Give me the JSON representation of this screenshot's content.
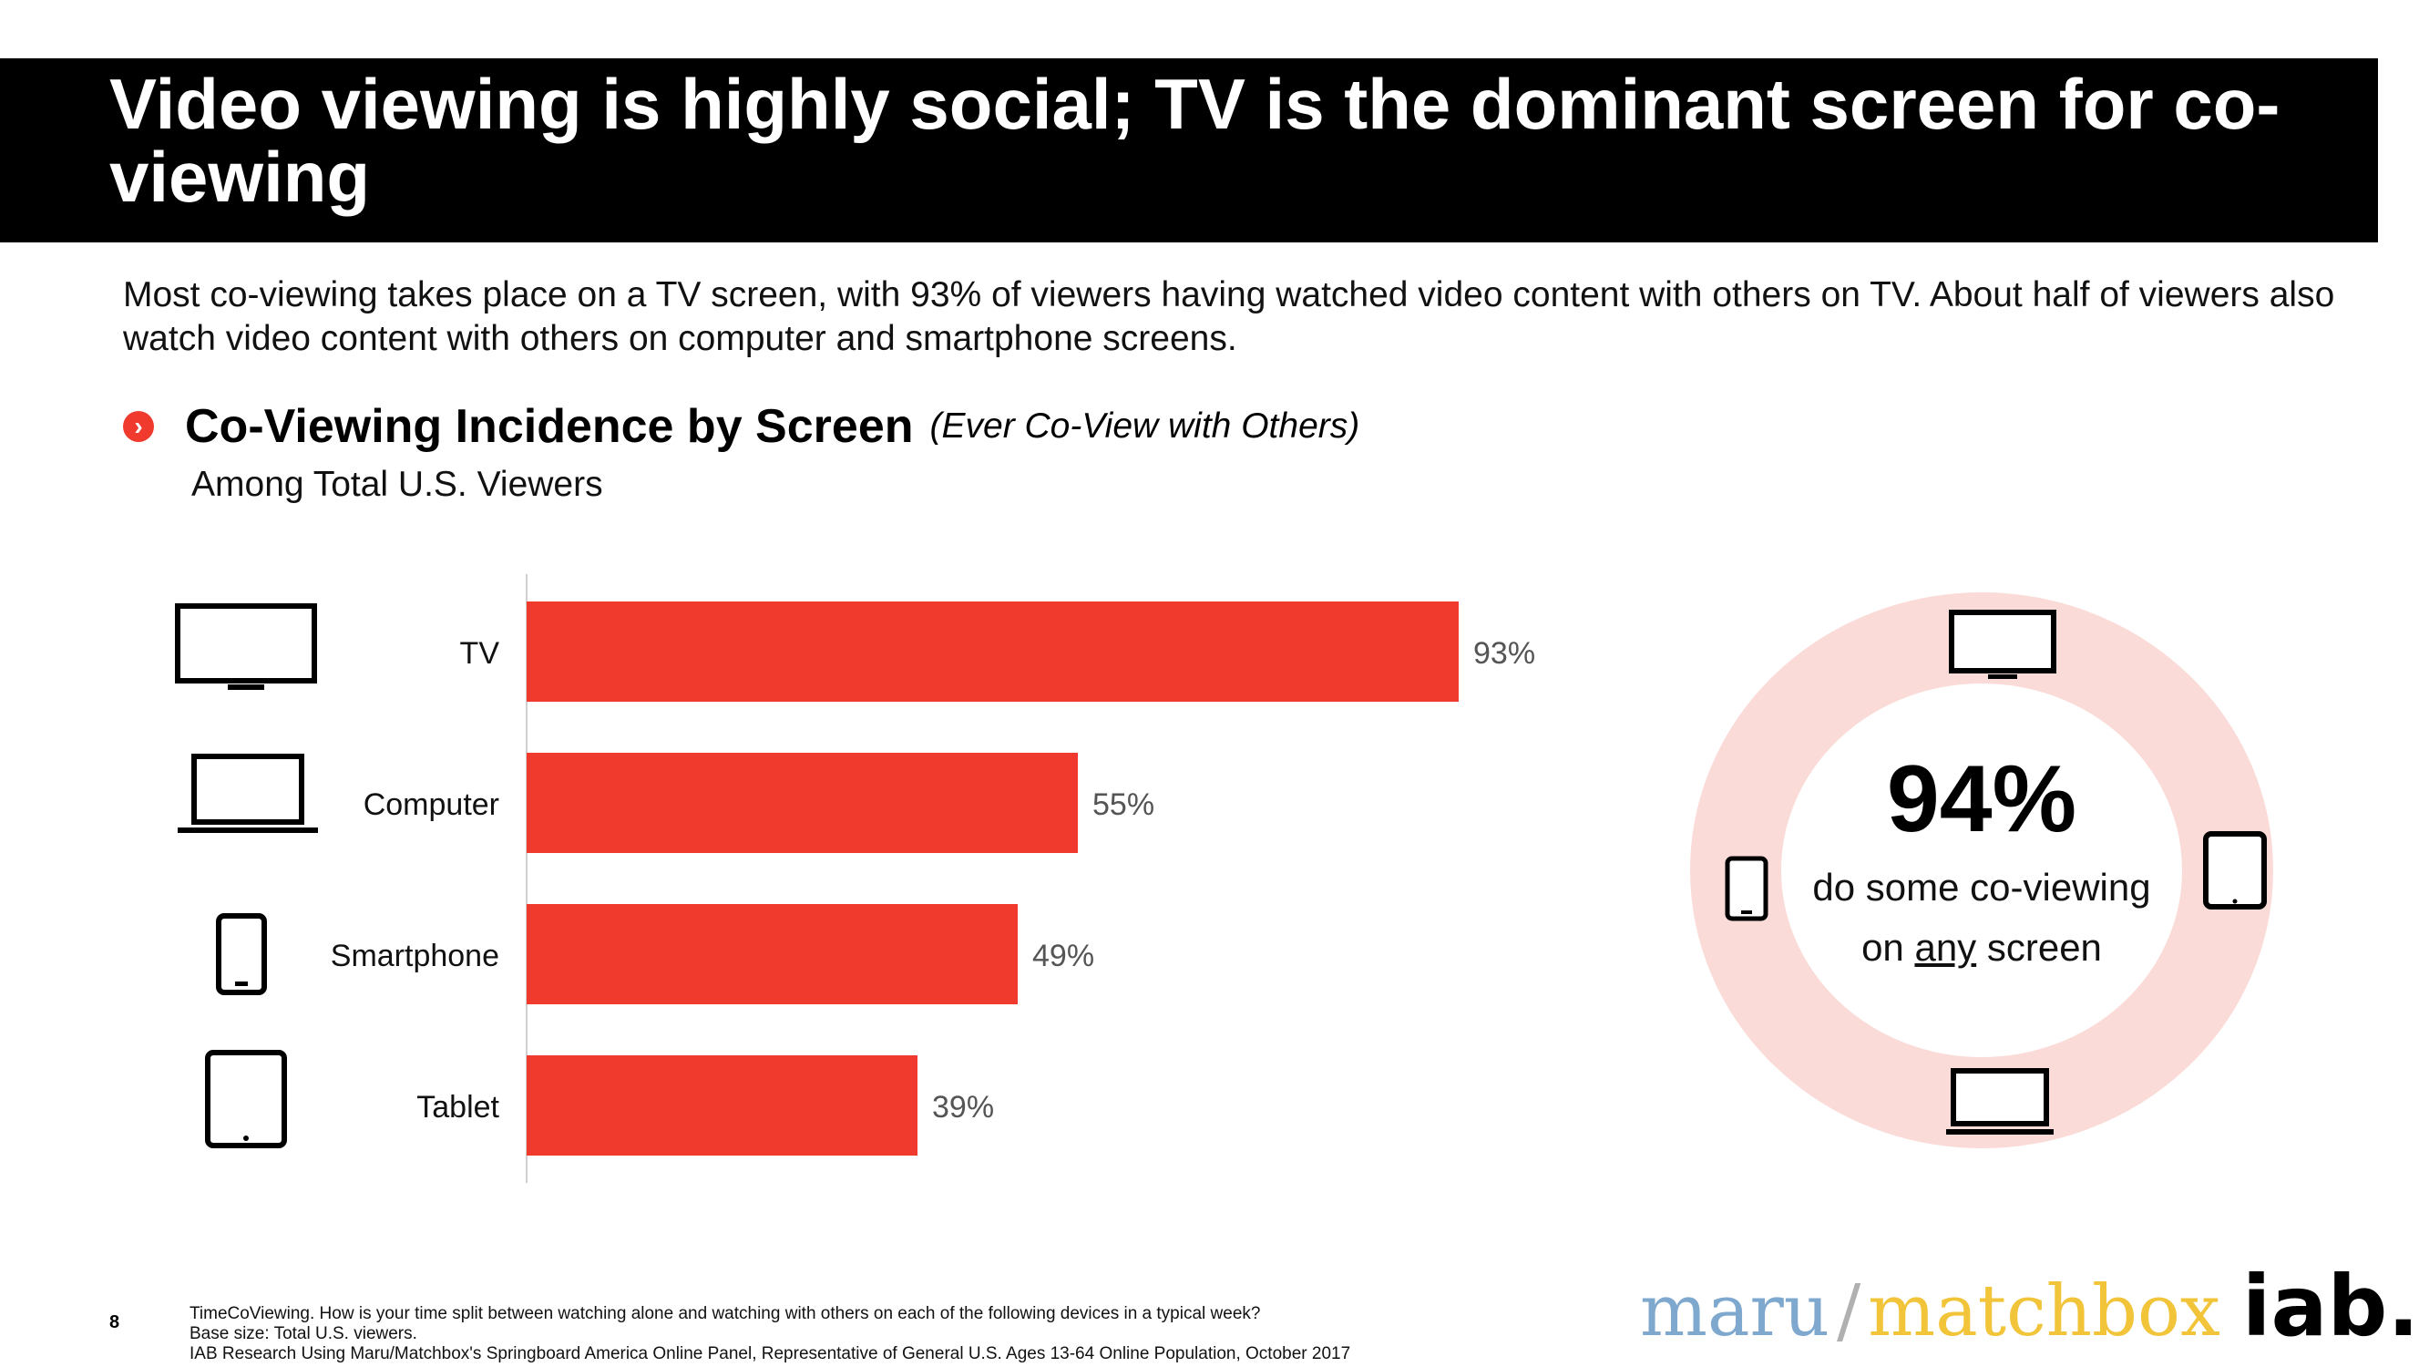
{
  "title": "Video viewing is highly social; TV is the dominant screen for co-viewing",
  "subtitle": "Most co-viewing takes place on a TV screen, with 93% of viewers having watched video content with others on TV. About half of viewers also watch video content with others on computer and smartphone screens.",
  "section": {
    "title": "Co-Viewing Incidence by Screen",
    "qualifier": "(Ever Co-View with Others)",
    "base_label": "Among Total U.S. Viewers"
  },
  "chart_data": {
    "type": "bar",
    "orientation": "horizontal",
    "categories": [
      "TV",
      "Computer",
      "Smartphone",
      "Tablet"
    ],
    "values": [
      93,
      55,
      49,
      39
    ],
    "value_labels": [
      "93%",
      "55%",
      "49%",
      "39%"
    ],
    "icons": [
      "tv-icon",
      "laptop-icon",
      "smartphone-icon",
      "tablet-icon"
    ],
    "xlim": [
      0,
      100
    ],
    "bar_color": "#ef3a2d",
    "grid": false
  },
  "callout": {
    "value": "94%",
    "line1": "do some co-viewing",
    "line2_pre": "on ",
    "line2_underlined": "any",
    "line2_post": " screen",
    "ring_color": "#fadbd8",
    "icons": [
      "tv-icon",
      "tablet-icon",
      "laptop-icon",
      "smartphone-icon"
    ]
  },
  "logos": {
    "maru": "maru",
    "slash": "/",
    "matchbox": "matchbox",
    "iab": "iab."
  },
  "footer": {
    "page_number": "8",
    "lines": [
      "TimeCoViewing. How is your time split between watching alone and watching with others on each of the following devices in a typical week?",
      "Base size: Total U.S. viewers.",
      "IAB Research Using Maru/Matchbox's Springboard America Online Panel, Representative of General U.S. Ages 13-64 Online Population, October 2017"
    ]
  }
}
